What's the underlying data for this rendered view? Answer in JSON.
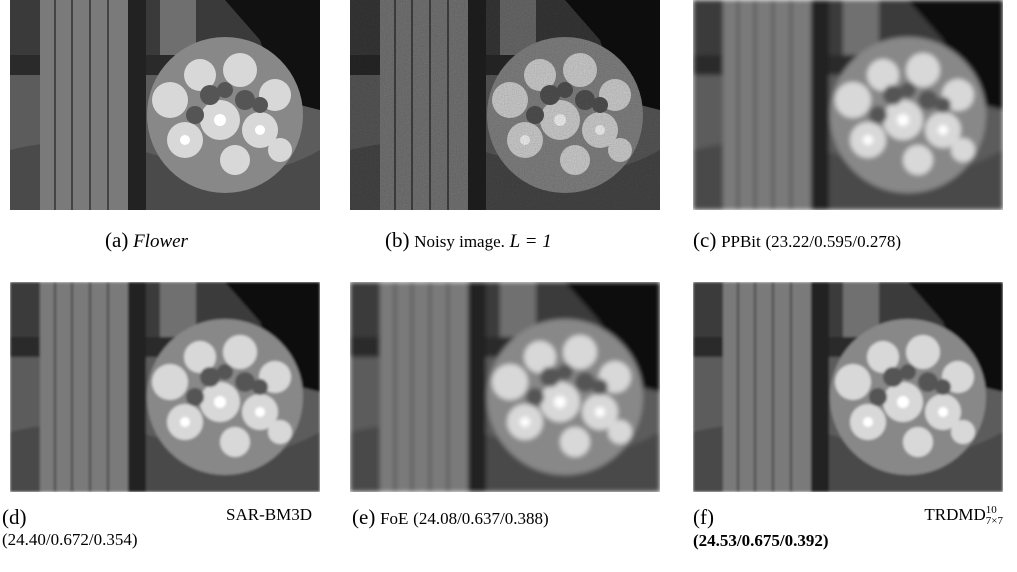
{
  "panels": [
    {
      "label": "(a)",
      "caption": "Flower"
    },
    {
      "label": "(b)",
      "caption": "Noisy image.",
      "math": "L = 1"
    },
    {
      "label": "(c)",
      "caption": "PPBit",
      "metrics": "(23.22/0.595/0.278)"
    },
    {
      "label": "(d)",
      "caption": "SAR-BM3D",
      "metrics": "(24.40/0.672/0.354)"
    },
    {
      "label": "(e)",
      "caption": "FoE",
      "metrics": "(24.08/0.637/0.388)"
    },
    {
      "label": "(f)",
      "caption": "TRDMD",
      "sup": "10",
      "sub": "7×7",
      "metrics": "(24.53/0.675/0.392)"
    }
  ]
}
